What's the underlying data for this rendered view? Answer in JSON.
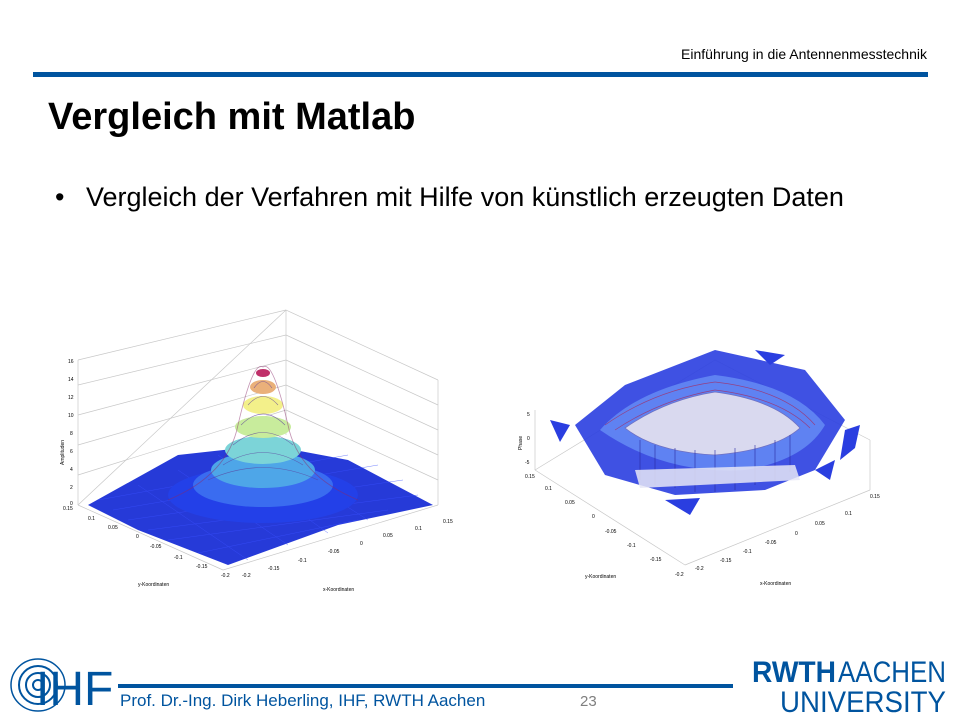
{
  "header": {
    "course": "Einführung in die Antennenmesstechnik"
  },
  "slide": {
    "title": "Vergleich mit Matlab",
    "bullet_symbol": "•",
    "bullet": "Vergleich der Verfahren mit Hilfe von künstlich erzeugten Daten"
  },
  "plot_left": {
    "zlabel": "Amplituden",
    "ylabel": "y-Koordinaten",
    "xlabel": "x-Koordinaten",
    "z_ticks": [
      "16",
      "14",
      "12",
      "10",
      "8",
      "6",
      "4",
      "2",
      "0"
    ],
    "y_ticks": [
      "0.15",
      "0.1",
      "0.05",
      "0",
      "-0.05",
      "-0.1",
      "-0.15",
      "-0.2"
    ],
    "x_ticks": [
      "-0.2",
      "-0.15",
      "-0.1",
      "-0.05",
      "0",
      "0.05",
      "0.1",
      "0.15"
    ]
  },
  "plot_right": {
    "zlabel": "Phase",
    "ylabel": "y-Koordinaten",
    "xlabel": "x-Koordinaten",
    "z_ticks": [
      "5",
      "0",
      "-5"
    ],
    "y_ticks": [
      "0.15",
      "0.1",
      "0.05",
      "0",
      "-0.05",
      "-0.1",
      "-0.15",
      "-0.2"
    ],
    "x_ticks": [
      "-0.2",
      "-0.15",
      "-0.1",
      "-0.05",
      "0",
      "0.05",
      "0.1",
      "0.15"
    ]
  },
  "footer": {
    "author": "Prof. Dr.-Ing. Dirk Heberling, IHF, RWTH Aachen",
    "page_number": "23",
    "ihf_logo_text": "IHF",
    "rwth_logo_line1_a": "RWTH",
    "rwth_logo_line1_b": "AACHEN",
    "rwth_logo_line2": "UNIVERSITY"
  },
  "colors": {
    "rwth_blue": "#00549f",
    "surface_blue": "#1a2fd6",
    "peak_yellow": "#f3f08a",
    "peak_red": "#c0306a"
  }
}
